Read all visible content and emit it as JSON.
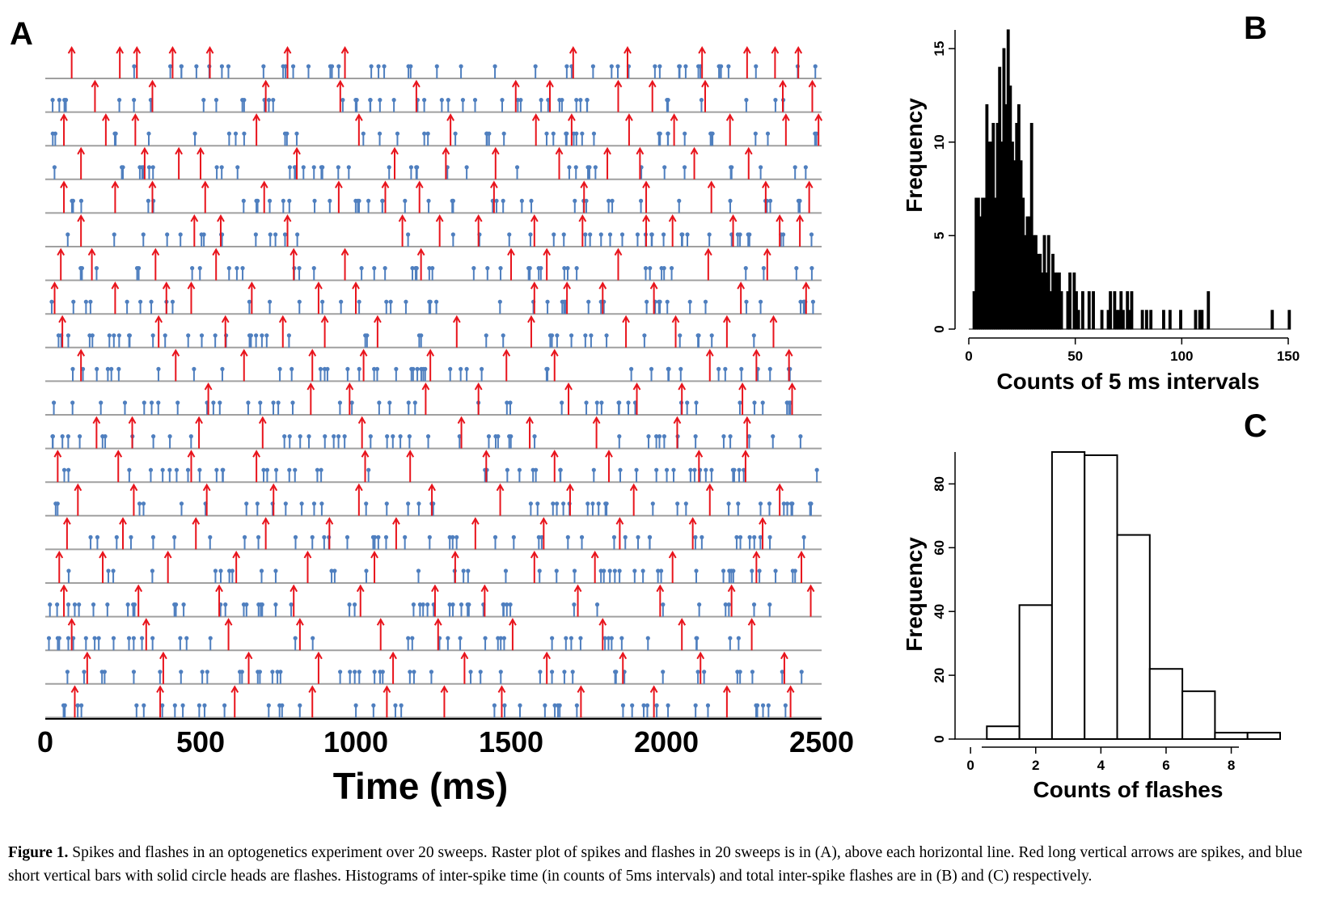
{
  "figure": {
    "caption_label": "Figure 1.",
    "caption_text": "Spikes and flashes in an optogenetics experiment over 20 sweeps. Raster plot of spikes and flashes in 20 sweeps is in (A), above each horizontal line. Red long vertical arrows are spikes, and blue short vertical bars with solid circle heads are flashes. Histograms of inter-spike time (in counts of 5ms intervals) and total inter-spike flashes are in (B) and (C) respectively."
  },
  "colors": {
    "spike": "#e8141c",
    "flash": "#4f7fbf",
    "baseline": "#a0a0a0",
    "hist_fill_B": "#000000",
    "hist_fill_C": "#ffffff"
  },
  "chart_data": [
    {
      "panel": "A",
      "type": "scatter",
      "title": "",
      "xlabel": "Time (ms)",
      "xlim": [
        0,
        2500
      ],
      "xticks": [
        "0",
        "500",
        "1000",
        "1500",
        "2000",
        "2500"
      ],
      "num_sweeps": 20,
      "series": [
        {
          "name": "spikes",
          "marker": "red-arrow",
          "sweeps": [
            [
              85,
              240,
              295,
              410,
              530,
              780,
              965,
              1700,
              1875,
              2115,
              2260,
              2350,
              2425
            ],
            [
              160,
              345,
              710,
              950,
              1195,
              1515,
              1625,
              1845,
              1955,
              2125,
              2375,
              2470
            ],
            [
              60,
              195,
              290,
              680,
              1010,
              1305,
              1580,
              1695,
              1880,
              2025,
              2205,
              2385,
              2490
            ],
            [
              115,
              320,
              430,
              500,
              810,
              1125,
              1290,
              1450,
              1655,
              1810,
              1915,
              2090,
              2265
            ],
            [
              60,
              225,
              345,
              515,
              705,
              945,
              1095,
              1205,
              1445,
              1735,
              1935,
              2145,
              2320,
              2460
            ],
            [
              115,
              480,
              565,
              780,
              1150,
              1270,
              1395,
              1575,
              1730,
              1935,
              2020,
              2215,
              2365,
              2430
            ],
            [
              50,
              150,
              355,
              550,
              800,
              965,
              1210,
              1500,
              1615,
              1845,
              2135,
              2325
            ],
            [
              30,
              225,
              390,
              470,
              665,
              880,
              1000,
              1575,
              1680,
              1795,
              1960,
              2240,
              2450
            ],
            [
              55,
              365,
              580,
              765,
              900,
              1070,
              1325,
              1565,
              1870,
              2030,
              2195,
              2345
            ],
            [
              115,
              420,
              640,
              860,
              1025,
              1240,
              1485,
              1640,
              2140,
              2290,
              2395
            ],
            [
              525,
              855,
              980,
              1225,
              1395,
              1685,
              1905,
              2050,
              2245,
              2405
            ],
            [
              165,
              280,
              495,
              700,
              1020,
              1340,
              1560,
              1775,
              2035,
              2260
            ],
            [
              40,
              235,
              470,
              680,
              1030,
              1175,
              1420,
              1640,
              1815,
              2105,
              2255
            ],
            [
              105,
              285,
              520,
              735,
              1010,
              1245,
              1465,
              1690,
              1895,
              2140,
              2365
            ],
            [
              70,
              250,
              485,
              710,
              915,
              1130,
              1385,
              1605,
              1850,
              2085,
              2310
            ],
            [
              45,
              185,
              395,
              615,
              845,
              1060,
              1320,
              1575,
              1770,
              2020,
              2290,
              2435
            ],
            [
              60,
              300,
              560,
              800,
              1015,
              1255,
              1415,
              1715,
              1980,
              2210,
              2465
            ],
            [
              85,
              325,
              590,
              820,
              1080,
              1265,
              1505,
              1795,
              2050,
              2275
            ],
            [
              135,
              380,
              655,
              880,
              1120,
              1350,
              1615,
              1860,
              2110,
              2380
            ],
            [
              95,
              370,
              610,
              860,
              1100,
              1285,
              1470,
              1725,
              1960,
              2195,
              2400
            ]
          ]
        },
        {
          "name": "flashes",
          "marker": "blue-pin",
          "rate_per_sweep": 40
        }
      ]
    },
    {
      "panel": "B",
      "type": "bar",
      "title": "",
      "xlabel": "Counts of 5 ms intervals",
      "ylabel": "Frequency",
      "xlim": [
        0,
        150
      ],
      "ylim": [
        0,
        16
      ],
      "xticks": [
        "0",
        "50",
        "100",
        "150"
      ],
      "yticks": [
        "0",
        "5",
        "10",
        "15"
      ],
      "bin_width": 1,
      "x": [
        3,
        4,
        5,
        6,
        7,
        8,
        9,
        10,
        11,
        12,
        13,
        14,
        15,
        16,
        17,
        18,
        19,
        20,
        21,
        22,
        23,
        24,
        25,
        26,
        27,
        28,
        29,
        30,
        31,
        32,
        33,
        34,
        35,
        36,
        37,
        38,
        39,
        40,
        41,
        42,
        43,
        44,
        47,
        48,
        50,
        51,
        52,
        54,
        57,
        59,
        63,
        66,
        67,
        69,
        70,
        71,
        72,
        73,
        75,
        76,
        77,
        82,
        84,
        86,
        92,
        95,
        100,
        107,
        109,
        110,
        113,
        143,
        151
      ],
      "values": [
        2,
        7,
        7,
        6,
        7,
        7,
        12,
        10,
        10,
        11,
        7,
        11,
        14,
        10,
        15,
        12,
        16,
        13,
        10,
        9,
        11,
        12,
        9,
        7,
        5,
        6,
        6,
        11,
        5,
        5,
        4,
        4,
        3,
        5,
        3,
        5,
        2,
        4,
        3,
        3,
        3,
        2,
        2,
        3,
        3,
        2,
        1,
        2,
        2,
        2,
        1,
        1,
        2,
        2,
        1,
        1,
        2,
        1,
        2,
        1,
        2,
        1,
        1,
        1,
        1,
        1,
        1,
        1,
        1,
        1,
        2,
        1,
        1
      ]
    },
    {
      "panel": "C",
      "type": "bar",
      "title": "",
      "xlabel": "Counts of flashes",
      "ylabel": "Frequency",
      "xlim": [
        -0.5,
        9.5
      ],
      "ylim": [
        0,
        90
      ],
      "xticks": [
        "0",
        "2",
        "4",
        "6",
        "8"
      ],
      "yticks": [
        "0",
        "20",
        "40",
        "60",
        "80"
      ],
      "categories": [
        0,
        1,
        2,
        3,
        4,
        5,
        6,
        7,
        8,
        9
      ],
      "values": [
        0,
        4,
        42,
        90,
        89,
        64,
        22,
        15,
        2,
        2
      ]
    }
  ]
}
